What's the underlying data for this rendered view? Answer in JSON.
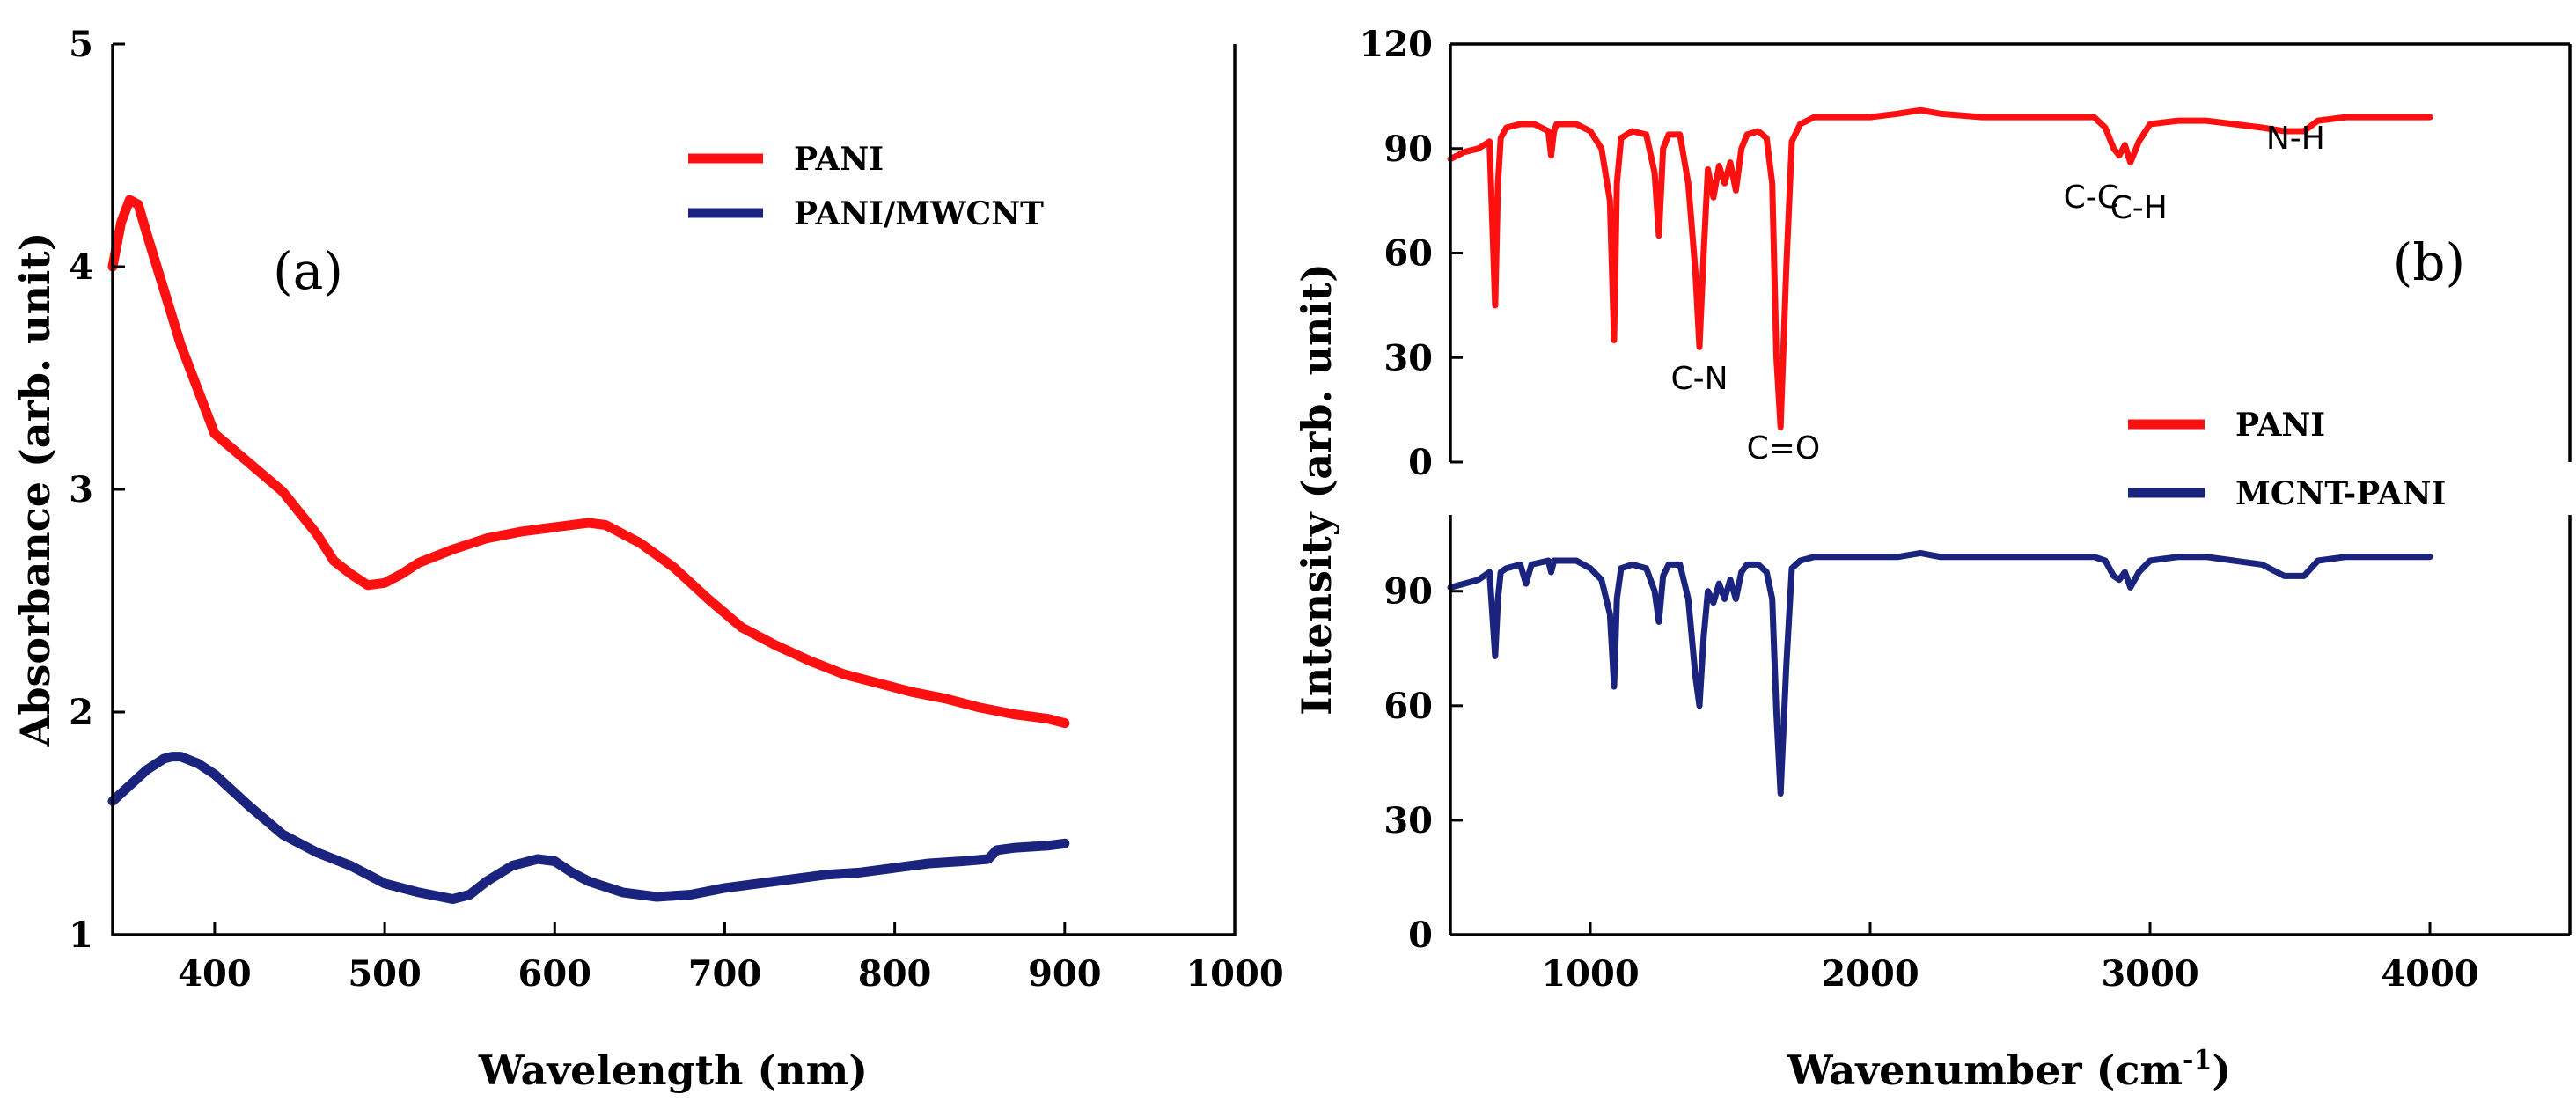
{
  "chart_data": [
    {
      "type": "line",
      "panel": "(a)",
      "title": "",
      "xlabel": "Wavelength (nm)",
      "ylabel": "Absorbance (arb. unit)",
      "xlim": [
        340,
        1000
      ],
      "ylim": [
        1,
        5
      ],
      "xticks": [
        400,
        500,
        600,
        700,
        800,
        900,
        1000
      ],
      "yticks": [
        1,
        2,
        3,
        4,
        5
      ],
      "xtick_labels": [
        "400",
        "500",
        "600",
        "700",
        "800",
        "900",
        "1000"
      ],
      "ytick_labels": [
        "1",
        "2",
        "3",
        "4",
        "5"
      ],
      "legend_position": "top-right",
      "series": [
        {
          "name": "PANI",
          "color": "#ff1010",
          "x": [
            340,
            345,
            350,
            355,
            360,
            370,
            380,
            390,
            400,
            420,
            440,
            460,
            470,
            480,
            490,
            500,
            510,
            520,
            540,
            560,
            580,
            600,
            620,
            630,
            650,
            670,
            690,
            710,
            730,
            750,
            770,
            790,
            810,
            830,
            850,
            870,
            890,
            900
          ],
          "y": [
            4.0,
            4.2,
            4.3,
            4.28,
            4.15,
            3.9,
            3.65,
            3.45,
            3.25,
            3.12,
            2.99,
            2.8,
            2.68,
            2.62,
            2.57,
            2.58,
            2.62,
            2.67,
            2.73,
            2.78,
            2.81,
            2.83,
            2.85,
            2.84,
            2.76,
            2.65,
            2.51,
            2.38,
            2.3,
            2.23,
            2.17,
            2.13,
            2.09,
            2.06,
            2.02,
            1.99,
            1.97,
            1.95
          ]
        },
        {
          "name": "PANI/MWCNT",
          "color": "#1a237e",
          "x": [
            340,
            350,
            360,
            370,
            375,
            380,
            390,
            400,
            420,
            440,
            460,
            480,
            500,
            520,
            540,
            550,
            560,
            575,
            590,
            600,
            610,
            620,
            640,
            660,
            680,
            700,
            720,
            740,
            760,
            780,
            800,
            820,
            840,
            855,
            860,
            870,
            890,
            900
          ],
          "y": [
            1.6,
            1.67,
            1.74,
            1.79,
            1.8,
            1.8,
            1.77,
            1.72,
            1.58,
            1.45,
            1.37,
            1.31,
            1.23,
            1.19,
            1.16,
            1.18,
            1.24,
            1.31,
            1.34,
            1.33,
            1.28,
            1.24,
            1.19,
            1.17,
            1.18,
            1.21,
            1.23,
            1.25,
            1.27,
            1.28,
            1.3,
            1.32,
            1.33,
            1.34,
            1.38,
            1.39,
            1.4,
            1.41
          ]
        }
      ]
    },
    {
      "type": "line",
      "panel": "(b)",
      "title": "",
      "xlabel": "Wavenumber (cm",
      "xlabel_superscript": "-1",
      "xlabel_suffix": ")",
      "ylabel": "Intensity (arb. unit)",
      "xlim": [
        500,
        4500
      ],
      "ylim_top": [
        0,
        120
      ],
      "ylim_bottom": [
        0,
        110
      ],
      "xticks": [
        1000,
        2000,
        3000,
        4000
      ],
      "xtick_labels": [
        "1000",
        "2000",
        "3000",
        "4000"
      ],
      "yticks_top": [
        0,
        30,
        60,
        90,
        120
      ],
      "ytick_labels_top": [
        "0",
        "30",
        "60",
        "90",
        "120"
      ],
      "yticks_bottom": [
        0,
        30,
        60,
        90
      ],
      "ytick_labels_bottom": [
        "0",
        "30",
        "60",
        "90"
      ],
      "legend_position": "right",
      "annotations": [
        {
          "text": "C-N",
          "x": 1390,
          "y": 21
        },
        {
          "text": "C=O",
          "x": 1690,
          "y": 1
        },
        {
          "text": "C-C",
          "x": 2790,
          "y": 73
        },
        {
          "text": "C-H",
          "x": 2960,
          "y": 70
        },
        {
          "text": "N-H",
          "x": 3520,
          "y": 90
        }
      ],
      "series": [
        {
          "name": "PANI",
          "color": "#ff1010",
          "x": [
            500,
            550,
            600,
            640,
            660,
            670,
            680,
            700,
            750,
            800,
            850,
            860,
            870,
            880,
            900,
            950,
            1000,
            1040,
            1070,
            1085,
            1095,
            1110,
            1150,
            1200,
            1230,
            1245,
            1260,
            1280,
            1320,
            1350,
            1375,
            1390,
            1405,
            1420,
            1440,
            1460,
            1480,
            1500,
            1520,
            1540,
            1560,
            1600,
            1630,
            1650,
            1665,
            1680,
            1700,
            1720,
            1750,
            1800,
            2000,
            2100,
            2180,
            2250,
            2400,
            2600,
            2800,
            2840,
            2870,
            2890,
            2910,
            2930,
            2960,
            3000,
            3100,
            3200,
            3300,
            3400,
            3480,
            3550,
            3600,
            3700,
            3800,
            4000
          ],
          "y": [
            87,
            89,
            90,
            92,
            45,
            80,
            93,
            96,
            97,
            97,
            95,
            88,
            95,
            97,
            97,
            97,
            95,
            90,
            75,
            35,
            80,
            93,
            95,
            94,
            83,
            65,
            90,
            94,
            94,
            80,
            55,
            33,
            60,
            84,
            76,
            85,
            80,
            86,
            78,
            90,
            94,
            95,
            93,
            80,
            30,
            10,
            55,
            92,
            97,
            99,
            99,
            100,
            101,
            100,
            99,
            99,
            99,
            96,
            90,
            88,
            91,
            86,
            92,
            97,
            98,
            98,
            97,
            96,
            95,
            95,
            98,
            99,
            99,
            99
          ]
        },
        {
          "name": "MCNT-PANI",
          "color": "#1a237e",
          "x": [
            500,
            550,
            600,
            640,
            660,
            670,
            680,
            700,
            750,
            770,
            790,
            850,
            860,
            870,
            900,
            950,
            1000,
            1040,
            1070,
            1085,
            1095,
            1110,
            1150,
            1200,
            1230,
            1245,
            1260,
            1280,
            1320,
            1350,
            1375,
            1390,
            1405,
            1420,
            1440,
            1460,
            1480,
            1500,
            1520,
            1540,
            1560,
            1600,
            1630,
            1650,
            1665,
            1680,
            1700,
            1720,
            1750,
            1800,
            2000,
            2100,
            2180,
            2250,
            2400,
            2600,
            2800,
            2840,
            2870,
            2890,
            2910,
            2930,
            2960,
            3000,
            3100,
            3200,
            3300,
            3400,
            3480,
            3550,
            3600,
            3700,
            3800,
            4000
          ],
          "y": [
            91,
            92,
            93,
            95,
            73,
            88,
            95,
            96,
            97,
            92,
            97,
            98,
            95,
            98,
            98,
            98,
            96,
            93,
            84,
            65,
            88,
            96,
            97,
            96,
            90,
            82,
            94,
            97,
            97,
            88,
            68,
            60,
            78,
            90,
            87,
            92,
            88,
            93,
            88,
            95,
            97,
            97,
            95,
            88,
            58,
            37,
            70,
            96,
            98,
            99,
            99,
            99,
            100,
            99,
            99,
            99,
            99,
            98,
            94,
            93,
            95,
            91,
            95,
            98,
            99,
            99,
            98,
            97,
            94,
            94,
            98,
            99,
            99,
            99
          ]
        }
      ]
    }
  ]
}
